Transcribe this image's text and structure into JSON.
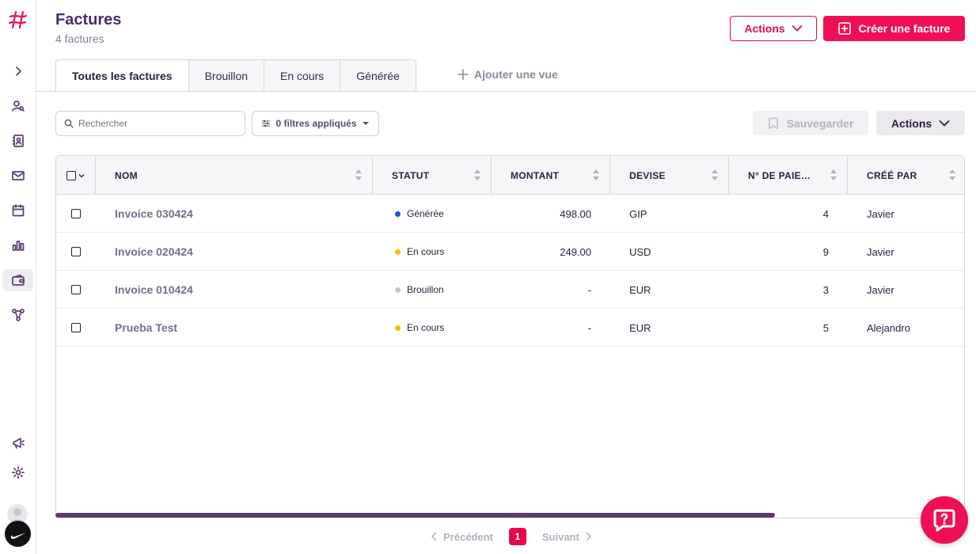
{
  "header": {
    "title": "Factures",
    "subtitle": "4 factures",
    "actions_label": "Actions",
    "create_label": "Créer une facture"
  },
  "tabs": [
    {
      "label": "Toutes les factures",
      "active": true
    },
    {
      "label": "Brouillon",
      "active": false
    },
    {
      "label": "En cours",
      "active": false
    },
    {
      "label": "Générée",
      "active": false
    }
  ],
  "add_view_label": "Ajouter une vue",
  "toolbar": {
    "search_placeholder": "Rechercher",
    "filters_label": "0 filtres appliqués",
    "save_label": "Sauvegarder",
    "actions_label": "Actions"
  },
  "table": {
    "columns": [
      {
        "key": "nom",
        "label": "NOM"
      },
      {
        "key": "statut",
        "label": "STATUT"
      },
      {
        "key": "montant",
        "label": "MONTANT"
      },
      {
        "key": "devise",
        "label": "DEVISE"
      },
      {
        "key": "paiement",
        "label": "N° DE PAIEMEN..."
      },
      {
        "key": "cree_par",
        "label": "CRÉÉ PAR"
      }
    ],
    "rows": [
      {
        "nom": "Invoice 030424",
        "statut": "Générée",
        "status_color": "#1f4fd6",
        "montant": "498.00",
        "devise": "GIP",
        "paiement": "4",
        "cree_par": "Javier"
      },
      {
        "nom": "Invoice 020424",
        "statut": "En cours",
        "status_color": "#f2c400",
        "montant": "249.00",
        "devise": "USD",
        "paiement": "9",
        "cree_par": "Javier"
      },
      {
        "nom": "Invoice 010424",
        "statut": "Brouillon",
        "status_color": "#c8c3cf",
        "montant": "-",
        "devise": "EUR",
        "paiement": "3",
        "cree_par": "Javier"
      },
      {
        "nom": "Prueba Test",
        "statut": "En cours",
        "status_color": "#f2c400",
        "montant": "-",
        "devise": "EUR",
        "paiement": "5",
        "cree_par": "Alejandro"
      }
    ]
  },
  "pagination": {
    "prev_label": "Précédent",
    "current_page": "1",
    "next_label": "Suivant"
  },
  "colors": {
    "brand": "#f00f57",
    "title": "#4b2c62"
  }
}
